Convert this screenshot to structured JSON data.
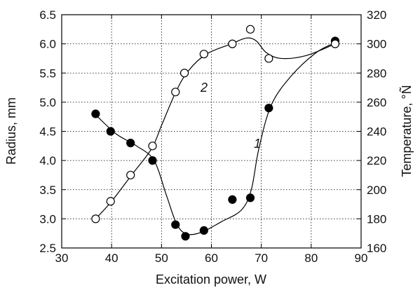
{
  "chart_data": {
    "type": "scatter",
    "xlabel": "Excitation power, W",
    "ylabel_left": "Radius, mm",
    "ylabel_right": "Temperature, °Ñ",
    "xlim": [
      30,
      90
    ],
    "ylim_left": [
      2.5,
      6.5
    ],
    "ylim_right": [
      160,
      320
    ],
    "x_ticks": [
      30,
      40,
      50,
      60,
      70,
      80,
      90
    ],
    "y_left_ticks": [
      "2.5",
      "3.0",
      "3.5",
      "4.0",
      "4.5",
      "5.0",
      "5.5",
      "6.0",
      "6.5"
    ],
    "y_right_ticks": [
      160,
      180,
      200,
      220,
      240,
      260,
      280,
      300,
      320
    ],
    "grid": true,
    "series": [
      {
        "name": "1",
        "marker": "filled-circle",
        "axis": "left",
        "points": [
          [
            36.8,
            4.8
          ],
          [
            39.8,
            4.5
          ],
          [
            43.8,
            4.3
          ],
          [
            48.2,
            4.0
          ],
          [
            52.8,
            2.9
          ],
          [
            54.8,
            2.7
          ],
          [
            58.5,
            2.8
          ],
          [
            64.2,
            3.33
          ],
          [
            67.8,
            3.36
          ],
          [
            71.5,
            4.9
          ],
          [
            84.8,
            6.05
          ]
        ],
        "curve": [
          [
            37.2,
            4.75
          ],
          [
            41,
            4.45
          ],
          [
            45,
            4.25
          ],
          [
            48.5,
            4.0
          ],
          [
            51,
            3.4
          ],
          [
            53,
            2.92
          ],
          [
            55,
            2.74
          ],
          [
            58,
            2.77
          ],
          [
            62,
            2.95
          ],
          [
            66,
            3.15
          ],
          [
            68,
            3.5
          ],
          [
            69.5,
            4.2
          ],
          [
            72,
            4.95
          ],
          [
            76,
            5.45
          ],
          [
            81,
            5.85
          ],
          [
            84.8,
            6.02
          ]
        ]
      },
      {
        "name": "2",
        "marker": "open-circle",
        "axis": "right",
        "points": [
          [
            36.8,
            180
          ],
          [
            39.8,
            192
          ],
          [
            43.8,
            210
          ],
          [
            48.2,
            230
          ],
          [
            52.8,
            267
          ],
          [
            54.6,
            280
          ],
          [
            58.5,
            293
          ],
          [
            64.2,
            300
          ],
          [
            67.8,
            310
          ],
          [
            71.5,
            290
          ],
          [
            84.8,
            300
          ]
        ],
        "curve": [
          [
            36.8,
            180
          ],
          [
            40,
            192
          ],
          [
            44,
            210
          ],
          [
            48,
            228
          ],
          [
            50,
            244
          ],
          [
            53,
            268
          ],
          [
            55.5,
            282
          ],
          [
            59,
            293
          ],
          [
            64,
            300
          ],
          [
            67,
            304
          ],
          [
            69,
            302
          ],
          [
            71,
            294
          ],
          [
            74,
            290
          ],
          [
            79,
            292
          ],
          [
            84.8,
            300
          ]
        ]
      }
    ]
  }
}
